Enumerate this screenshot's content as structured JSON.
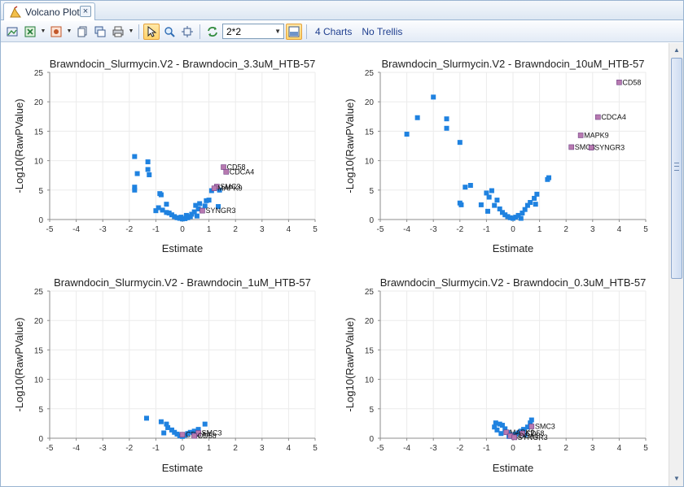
{
  "window": {
    "tab_title": "Volcano Plot",
    "close_label": "×"
  },
  "toolbar": {
    "layout_value": "2*2",
    "charts_count_label": "4 Charts",
    "trellis_label": "No Trellis",
    "icons": [
      "export-image-icon",
      "export-excel-icon",
      "export-ppt-icon",
      "copy-icon",
      "copy-window-icon",
      "print-icon",
      "pointer-icon",
      "zoom-icon",
      "fit-icon",
      "refresh-icon",
      "layout-icon"
    ]
  },
  "colors": {
    "point": "#1f82e0",
    "highlight": "#b87ab0",
    "grid": "#ebebeb",
    "axis": "#8c8c8c"
  },
  "chart_data": [
    {
      "type": "scatter",
      "title": "Brawndocin_Slurmycin.V2 - Brawndocin_3.3uM_HTB-57",
      "xlabel": "Estimate",
      "ylabel": "-Log10(RawPValue)",
      "xlim": [
        -5,
        5
      ],
      "ylim": [
        0,
        25
      ],
      "xticks": [
        "-5",
        "-4",
        "-3",
        "-2",
        "-1",
        "0",
        "1",
        "2",
        "3",
        "4",
        "5"
      ],
      "yticks": [
        "0",
        "5",
        "10",
        "15",
        "20",
        "25"
      ],
      "grid": true,
      "points": [
        {
          "x": -1.8,
          "y": 10.7
        },
        {
          "x": -1.7,
          "y": 7.8
        },
        {
          "x": -1.3,
          "y": 9.8
        },
        {
          "x": -1.3,
          "y": 8.5
        },
        {
          "x": -1.25,
          "y": 7.6
        },
        {
          "x": -1.8,
          "y": 5.5
        },
        {
          "x": -1.8,
          "y": 5.0
        },
        {
          "x": -0.85,
          "y": 4.4
        },
        {
          "x": -0.8,
          "y": 4.2
        },
        {
          "x": -0.9,
          "y": 2.0
        },
        {
          "x": -0.6,
          "y": 2.6
        },
        {
          "x": -1.0,
          "y": 1.5
        },
        {
          "x": -0.75,
          "y": 1.6
        },
        {
          "x": -0.6,
          "y": 1.2
        },
        {
          "x": -0.5,
          "y": 1.1
        },
        {
          "x": -0.4,
          "y": 0.8
        },
        {
          "x": -0.3,
          "y": 0.5
        },
        {
          "x": -0.2,
          "y": 0.3
        },
        {
          "x": -0.1,
          "y": 0.2
        },
        {
          "x": 0.0,
          "y": 0.1
        },
        {
          "x": 0.1,
          "y": 0.15
        },
        {
          "x": 0.2,
          "y": 0.3
        },
        {
          "x": 0.3,
          "y": 0.5
        },
        {
          "x": 0.35,
          "y": 0.9
        },
        {
          "x": 0.45,
          "y": 1.3
        },
        {
          "x": 0.5,
          "y": 2.4
        },
        {
          "x": 0.6,
          "y": 1.8
        },
        {
          "x": 0.65,
          "y": 2.7
        },
        {
          "x": 0.75,
          "y": 1.6
        },
        {
          "x": 0.85,
          "y": 2.3
        },
        {
          "x": 0.9,
          "y": 3.2
        },
        {
          "x": 1.0,
          "y": 3.3
        },
        {
          "x": 1.1,
          "y": 4.9
        },
        {
          "x": 1.4,
          "y": 5.0
        },
        {
          "x": 1.35,
          "y": 2.2
        },
        {
          "x": 0.55,
          "y": 0.6
        },
        {
          "x": -0.05,
          "y": 0.4
        },
        {
          "x": 0.15,
          "y": 0.7
        }
      ],
      "labels": [
        {
          "text": "CD58",
          "x": 1.55,
          "y": 8.9
        },
        {
          "text": "CDCA4",
          "x": 1.65,
          "y": 8.1
        },
        {
          "text": "SMC3",
          "x": 1.3,
          "y": 5.6
        },
        {
          "text": "MAPK9",
          "x": 1.2,
          "y": 5.3
        },
        {
          "text": "SYNGR3",
          "x": 0.75,
          "y": 1.5
        }
      ]
    },
    {
      "type": "scatter",
      "title": "Brawndocin_Slurmycin.V2 - Brawndocin_10uM_HTB-57",
      "xlabel": "Estimate",
      "ylabel": "-Log10(RawPValue)",
      "xlim": [
        -5,
        5
      ],
      "ylim": [
        0,
        25
      ],
      "xticks": [
        "-5",
        "-4",
        "-3",
        "-2",
        "-1",
        "0",
        "1",
        "2",
        "3",
        "4",
        "5"
      ],
      "yticks": [
        "0",
        "5",
        "10",
        "15",
        "20",
        "25"
      ],
      "grid": true,
      "points": [
        {
          "x": -3.0,
          "y": 20.8
        },
        {
          "x": -3.6,
          "y": 17.3
        },
        {
          "x": -2.5,
          "y": 17.1
        },
        {
          "x": -2.5,
          "y": 15.5
        },
        {
          "x": -4.0,
          "y": 14.5
        },
        {
          "x": -2.0,
          "y": 13.1
        },
        {
          "x": -1.8,
          "y": 5.5
        },
        {
          "x": -1.6,
          "y": 5.8
        },
        {
          "x": -2.0,
          "y": 2.8
        },
        {
          "x": -1.95,
          "y": 2.5
        },
        {
          "x": -1.2,
          "y": 2.5
        },
        {
          "x": -1.0,
          "y": 4.5
        },
        {
          "x": -0.8,
          "y": 4.9
        },
        {
          "x": -0.9,
          "y": 3.8
        },
        {
          "x": -0.6,
          "y": 3.3
        },
        {
          "x": -0.7,
          "y": 2.4
        },
        {
          "x": -0.5,
          "y": 1.8
        },
        {
          "x": -0.4,
          "y": 1.2
        },
        {
          "x": -0.3,
          "y": 0.8
        },
        {
          "x": -0.2,
          "y": 0.5
        },
        {
          "x": -0.1,
          "y": 0.3
        },
        {
          "x": 0.0,
          "y": 0.2
        },
        {
          "x": 0.1,
          "y": 0.4
        },
        {
          "x": 0.2,
          "y": 0.7
        },
        {
          "x": 0.35,
          "y": 1.1
        },
        {
          "x": 0.45,
          "y": 1.7
        },
        {
          "x": 0.55,
          "y": 2.4
        },
        {
          "x": 0.65,
          "y": 2.9
        },
        {
          "x": 0.8,
          "y": 3.6
        },
        {
          "x": 0.9,
          "y": 4.3
        },
        {
          "x": 0.85,
          "y": 2.6
        },
        {
          "x": 1.3,
          "y": 6.8
        },
        {
          "x": 1.35,
          "y": 7.1
        },
        {
          "x": -0.95,
          "y": 1.4
        },
        {
          "x": 0.3,
          "y": 0.2
        }
      ],
      "labels": [
        {
          "text": "CD58",
          "x": 4.0,
          "y": 23.3
        },
        {
          "text": "CDCA4",
          "x": 3.2,
          "y": 17.4
        },
        {
          "text": "MAPK9",
          "x": 2.55,
          "y": 14.3
        },
        {
          "text": "SMC3",
          "x": 2.2,
          "y": 12.3
        },
        {
          "text": "SYNGR3",
          "x": 2.95,
          "y": 12.2
        }
      ]
    },
    {
      "type": "scatter",
      "title": "Brawndocin_Slurmycin.V2 - Brawndocin_1uM_HTB-57",
      "xlabel": "Estimate",
      "ylabel": "-Log10(RawPValue)",
      "xlim": [
        -5,
        5
      ],
      "ylim": [
        0,
        25
      ],
      "xticks": [
        "-5",
        "-4",
        "-3",
        "-2",
        "-1",
        "0",
        "1",
        "2",
        "3",
        "4",
        "5"
      ],
      "yticks": [
        "0",
        "5",
        "10",
        "15",
        "20",
        "25"
      ],
      "grid": true,
      "points": [
        {
          "x": -1.35,
          "y": 3.4
        },
        {
          "x": -0.8,
          "y": 2.8
        },
        {
          "x": -0.6,
          "y": 2.4
        },
        {
          "x": -0.55,
          "y": 1.8
        },
        {
          "x": -0.4,
          "y": 1.4
        },
        {
          "x": -0.3,
          "y": 1.0
        },
        {
          "x": -0.2,
          "y": 0.7
        },
        {
          "x": -0.1,
          "y": 0.4
        },
        {
          "x": 0.0,
          "y": 0.3
        },
        {
          "x": 0.1,
          "y": 0.5
        },
        {
          "x": 0.2,
          "y": 0.8
        },
        {
          "x": 0.3,
          "y": 1.0
        },
        {
          "x": 0.45,
          "y": 1.2
        },
        {
          "x": 0.6,
          "y": 1.5
        },
        {
          "x": 0.85,
          "y": 2.4
        },
        {
          "x": -0.7,
          "y": 0.9
        },
        {
          "x": 0.5,
          "y": 0.7
        }
      ],
      "labels": [
        {
          "text": "CDCA4",
          "x": 0.0,
          "y": 0.6
        },
        {
          "text": "SMC3",
          "x": 0.6,
          "y": 0.9
        },
        {
          "text": "CD58",
          "x": 0.45,
          "y": 0.4
        }
      ]
    },
    {
      "type": "scatter",
      "title": "Brawndocin_Slurmycin.V2 - Brawndocin_0.3uM_HTB-57",
      "xlabel": "Estimate",
      "ylabel": "-Log10(RawPValue)",
      "xlim": [
        -5,
        5
      ],
      "ylim": [
        0,
        25
      ],
      "xticks": [
        "-5",
        "-4",
        "-3",
        "-2",
        "-1",
        "0",
        "1",
        "2",
        "3",
        "4",
        "5"
      ],
      "yticks": [
        "0",
        "5",
        "10",
        "15",
        "20",
        "25"
      ],
      "grid": true,
      "points": [
        {
          "x": -0.65,
          "y": 2.6
        },
        {
          "x": -0.5,
          "y": 2.4
        },
        {
          "x": -0.7,
          "y": 1.9
        },
        {
          "x": -0.4,
          "y": 2.2
        },
        {
          "x": -0.6,
          "y": 1.4
        },
        {
          "x": -0.3,
          "y": 1.6
        },
        {
          "x": -0.2,
          "y": 1.0
        },
        {
          "x": -0.1,
          "y": 0.6
        },
        {
          "x": 0.0,
          "y": 0.4
        },
        {
          "x": 0.1,
          "y": 0.7
        },
        {
          "x": 0.2,
          "y": 0.9
        },
        {
          "x": 0.3,
          "y": 1.2
        },
        {
          "x": 0.4,
          "y": 1.5
        },
        {
          "x": 0.55,
          "y": 1.9
        },
        {
          "x": 0.65,
          "y": 2.6
        },
        {
          "x": 0.7,
          "y": 3.1
        },
        {
          "x": -0.45,
          "y": 0.8
        },
        {
          "x": 0.45,
          "y": 0.6
        },
        {
          "x": -0.15,
          "y": 0.3
        }
      ],
      "labels": [
        {
          "text": "SMC3",
          "x": 0.7,
          "y": 2.0
        },
        {
          "text": "MAPK9",
          "x": -0.25,
          "y": 1.0
        },
        {
          "text": "CD58",
          "x": 0.35,
          "y": 0.8
        },
        {
          "text": "CDCA4",
          "x": -0.1,
          "y": 0.4
        },
        {
          "text": "SYNGR3",
          "x": 0.05,
          "y": 0.15
        }
      ]
    }
  ]
}
